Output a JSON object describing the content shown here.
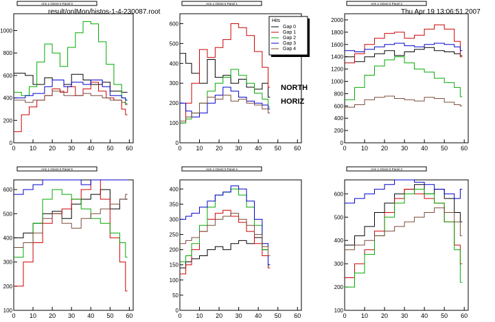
{
  "header": {
    "file_path": "result/onlMon/histos-1-4-230087.root",
    "timestamp": "Thu Apr 19 13:06:51 2007"
  },
  "annotations": {
    "line1": "NORTH",
    "line2": "HORIZ"
  },
  "legend": {
    "title": "Hits",
    "entries": [
      {
        "label": "Gap 0",
        "color": "#000000"
      },
      {
        "label": "Gap 1",
        "color": "#cc0000"
      },
      {
        "label": "Gap 2",
        "color": "#00aa00"
      },
      {
        "label": "Gap 3",
        "color": "#0000cc"
      },
      {
        "label": "Gap 4",
        "color": "#7a4a3a"
      }
    ]
  },
  "colors": {
    "gap0": "#000000",
    "gap1": "#cc0000",
    "gap2": "#00aa00",
    "gap3": "#0000cc",
    "gap4": "#7a4a3a"
  },
  "chart_data": [
    {
      "type": "line",
      "title": "Arm 1 Orient 0 Panel 0",
      "x_ticks": [
        0,
        10,
        20,
        30,
        40,
        50,
        60
      ],
      "xlim": [
        0,
        62
      ],
      "y_ticks": [
        0,
        200,
        400,
        600,
        800,
        1000
      ],
      "ylim": [
        0,
        1150
      ],
      "series": [
        {
          "name": "Gap 0",
          "x": [
            0,
            6,
            10,
            16,
            20,
            26,
            30,
            36,
            40,
            46,
            50,
            56,
            58
          ],
          "values": [
            620,
            600,
            520,
            580,
            560,
            520,
            610,
            560,
            520,
            540,
            460,
            450,
            450
          ]
        },
        {
          "name": "Gap 1",
          "x": [
            0,
            4,
            8,
            12,
            16,
            20,
            24,
            28,
            32,
            36,
            40,
            44,
            48,
            52,
            56,
            58
          ],
          "values": [
            100,
            250,
            320,
            380,
            420,
            480,
            450,
            500,
            420,
            480,
            540,
            460,
            400,
            380,
            300,
            250
          ]
        },
        {
          "name": "Gap 2",
          "x": [
            0,
            4,
            8,
            12,
            16,
            20,
            24,
            28,
            32,
            36,
            40,
            44,
            48,
            52,
            56,
            58
          ],
          "values": [
            450,
            420,
            500,
            720,
            880,
            800,
            680,
            850,
            980,
            1080,
            1060,
            900,
            700,
            520,
            400,
            350
          ]
        },
        {
          "name": "Gap 3",
          "x": [
            0,
            6,
            10,
            16,
            20,
            26,
            30,
            36,
            40,
            46,
            50,
            56,
            58
          ],
          "values": [
            400,
            420,
            440,
            500,
            560,
            500,
            540,
            520,
            560,
            500,
            420,
            400,
            380
          ]
        },
        {
          "name": "Gap 4",
          "x": [
            0,
            6,
            10,
            16,
            20,
            26,
            30,
            36,
            40,
            46,
            50,
            56,
            58
          ],
          "values": [
            380,
            360,
            380,
            420,
            460,
            420,
            420,
            440,
            420,
            400,
            380,
            360,
            340
          ]
        }
      ]
    },
    {
      "type": "line",
      "title": "Arm 1 Orient 0 Panel 1",
      "x_ticks": [
        0,
        10,
        20,
        30,
        40,
        50,
        60
      ],
      "xlim": [
        0,
        62
      ],
      "y_ticks": [
        0,
        100,
        200,
        300,
        400,
        500,
        600
      ],
      "ylim": [
        0,
        650
      ],
      "series": [
        {
          "name": "Gap 0",
          "x": [
            0,
            3,
            6,
            10,
            14,
            18,
            22,
            26,
            30,
            34,
            38,
            42,
            45
          ],
          "values": [
            450,
            400,
            350,
            300,
            420,
            330,
            340,
            300,
            320,
            280,
            270,
            300,
            230
          ]
        },
        {
          "name": "Gap 1",
          "x": [
            0,
            3,
            6,
            10,
            14,
            18,
            22,
            26,
            30,
            34,
            38,
            42,
            45
          ],
          "values": [
            100,
            200,
            300,
            470,
            430,
            480,
            520,
            600,
            580,
            540,
            460,
            380,
            280
          ]
        },
        {
          "name": "Gap 2",
          "x": [
            0,
            3,
            6,
            10,
            14,
            18,
            22,
            26,
            30,
            34,
            38,
            42,
            45
          ],
          "values": [
            100,
            120,
            150,
            200,
            260,
            300,
            330,
            370,
            340,
            300,
            250,
            220,
            180
          ]
        },
        {
          "name": "Gap 3",
          "x": [
            0,
            3,
            6,
            10,
            14,
            18,
            22,
            26,
            30,
            34,
            38,
            42,
            45
          ],
          "values": [
            200,
            160,
            130,
            150,
            200,
            240,
            280,
            260,
            230,
            210,
            200,
            190,
            170
          ]
        },
        {
          "name": "Gap 4",
          "x": [
            0,
            3,
            6,
            10,
            14,
            18,
            22,
            26,
            30,
            34,
            38,
            42,
            45
          ],
          "values": [
            110,
            130,
            150,
            200,
            230,
            220,
            240,
            210,
            220,
            200,
            190,
            170,
            150
          ]
        }
      ]
    },
    {
      "type": "line",
      "title": "Arm 1 Orient 0 Panel 2",
      "x_ticks": [
        0,
        10,
        20,
        30,
        40,
        50,
        60
      ],
      "xlim": [
        0,
        62
      ],
      "y_ticks": [
        0,
        200,
        400,
        600,
        800,
        1000,
        1200,
        1400,
        1600,
        1800,
        2000
      ],
      "ylim": [
        0,
        2100
      ],
      "series": [
        {
          "name": "Gap 0",
          "x": [
            0,
            5,
            10,
            15,
            20,
            25,
            30,
            35,
            40,
            45,
            50,
            55,
            58
          ],
          "values": [
            1400,
            1320,
            1400,
            1450,
            1500,
            1420,
            1480,
            1520,
            1550,
            1500,
            1480,
            1450,
            1420
          ]
        },
        {
          "name": "Gap 1",
          "x": [
            0,
            5,
            10,
            15,
            20,
            25,
            30,
            35,
            40,
            45,
            50,
            55,
            58
          ],
          "values": [
            1300,
            1450,
            1600,
            1700,
            1780,
            1800,
            1700,
            1750,
            1850,
            1920,
            1850,
            1650,
            1400
          ]
        },
        {
          "name": "Gap 2",
          "x": [
            0,
            5,
            10,
            15,
            20,
            25,
            30,
            35,
            40,
            45,
            50,
            55,
            58
          ],
          "values": [
            700,
            900,
            1100,
            1250,
            1350,
            1400,
            1300,
            1200,
            1150,
            1050,
            980,
            900,
            750
          ]
        },
        {
          "name": "Gap 3",
          "x": [
            0,
            5,
            10,
            15,
            20,
            25,
            30,
            35,
            40,
            45,
            50,
            55,
            58
          ],
          "values": [
            1500,
            1480,
            1520,
            1560,
            1600,
            1620,
            1580,
            1560,
            1600,
            1620,
            1600,
            1560,
            1500
          ]
        },
        {
          "name": "Gap 4",
          "x": [
            0,
            5,
            10,
            15,
            20,
            25,
            30,
            35,
            40,
            45,
            50,
            55,
            58
          ],
          "values": [
            580,
            620,
            700,
            740,
            760,
            720,
            700,
            680,
            740,
            720,
            660,
            620,
            600
          ]
        }
      ]
    },
    {
      "type": "line",
      "title": "Arm 1 Orient 0 Panel 5",
      "x_ticks": [
        0,
        10,
        20,
        30,
        40,
        50,
        60
      ],
      "xlim": [
        0,
        62
      ],
      "y_ticks": [
        100,
        200,
        300,
        400,
        500,
        600
      ],
      "ylim": [
        100,
        640
      ],
      "series": [
        {
          "name": "Gap 0",
          "x": [
            0,
            5,
            10,
            15,
            20,
            25,
            30,
            35,
            40,
            45,
            50,
            55,
            58
          ],
          "values": [
            400,
            420,
            460,
            500,
            510,
            480,
            540,
            560,
            580,
            600,
            520,
            560,
            560
          ]
        },
        {
          "name": "Gap 1",
          "x": [
            0,
            5,
            10,
            15,
            20,
            25,
            30,
            35,
            40,
            45,
            50,
            55,
            58
          ],
          "values": [
            200,
            300,
            380,
            460,
            500,
            520,
            560,
            600,
            640,
            560,
            400,
            300,
            180
          ]
        },
        {
          "name": "Gap 2",
          "x": [
            0,
            5,
            10,
            15,
            20,
            25,
            30,
            35,
            40,
            45,
            50,
            55,
            58
          ],
          "values": [
            320,
            380,
            460,
            560,
            600,
            580,
            560,
            520,
            480,
            460,
            420,
            380,
            320
          ]
        },
        {
          "name": "Gap 3",
          "x": [
            0,
            5,
            10,
            15,
            20,
            25,
            30,
            35,
            40,
            45,
            50,
            55,
            58
          ],
          "values": [
            580,
            600,
            620,
            640,
            660,
            650,
            640,
            620,
            640,
            660,
            640,
            680,
            700
          ]
        },
        {
          "name": "Gap 4",
          "x": [
            0,
            5,
            10,
            15,
            20,
            25,
            30,
            35,
            40,
            45,
            50,
            55,
            58
          ],
          "values": [
            360,
            380,
            420,
            480,
            500,
            460,
            440,
            480,
            500,
            520,
            540,
            560,
            580
          ]
        }
      ]
    },
    {
      "type": "line",
      "title": "Arm 1 Orient 0 Panel 4",
      "x_ticks": [
        0,
        10,
        20,
        30,
        40,
        50,
        60
      ],
      "xlim": [
        0,
        62
      ],
      "y_ticks": [
        0,
        50,
        100,
        150,
        200,
        250,
        300,
        350,
        400
      ],
      "ylim": [
        0,
        430
      ],
      "series": [
        {
          "name": "Gap 0",
          "x": [
            0,
            3,
            6,
            10,
            14,
            18,
            22,
            26,
            30,
            34,
            38,
            42,
            45
          ],
          "values": [
            140,
            160,
            170,
            180,
            200,
            210,
            200,
            220,
            230,
            220,
            240,
            200,
            180
          ]
        },
        {
          "name": "Gap 1",
          "x": [
            0,
            3,
            6,
            10,
            14,
            18,
            22,
            26,
            30,
            34,
            38,
            42,
            45
          ],
          "values": [
            120,
            150,
            200,
            260,
            300,
            320,
            330,
            310,
            290,
            260,
            220,
            180,
            140
          ]
        },
        {
          "name": "Gap 2",
          "x": [
            0,
            3,
            6,
            10,
            14,
            18,
            22,
            26,
            30,
            34,
            38,
            42,
            45
          ],
          "values": [
            160,
            180,
            220,
            280,
            340,
            380,
            390,
            400,
            380,
            340,
            280,
            200,
            150
          ]
        },
        {
          "name": "Gap 3",
          "x": [
            0,
            3,
            6,
            10,
            14,
            18,
            22,
            26,
            30,
            34,
            38,
            42,
            45
          ],
          "values": [
            300,
            310,
            320,
            340,
            360,
            380,
            390,
            410,
            400,
            360,
            300,
            220,
            150
          ]
        },
        {
          "name": "Gap 4",
          "x": [
            0,
            3,
            6,
            10,
            14,
            18,
            22,
            26,
            30,
            34,
            38,
            42,
            45
          ],
          "values": [
            220,
            230,
            240,
            260,
            280,
            300,
            310,
            320,
            300,
            280,
            250,
            210,
            180
          ]
        }
      ]
    },
    {
      "type": "line",
      "title": "Arm 1 Orient 0 Panel 3",
      "x_ticks": [
        0,
        10,
        20,
        30,
        40,
        50,
        60
      ],
      "xlim": [
        0,
        62
      ],
      "y_ticks": [
        100,
        200,
        300,
        400,
        500,
        600
      ],
      "ylim": [
        100,
        660
      ],
      "series": [
        {
          "name": "Gap 0",
          "x": [
            0,
            5,
            10,
            15,
            20,
            25,
            30,
            35,
            40,
            45,
            50,
            55,
            58
          ],
          "values": [
            380,
            420,
            460,
            520,
            560,
            600,
            620,
            640,
            600,
            620,
            580,
            520,
            480
          ]
        },
        {
          "name": "Gap 1",
          "x": [
            0,
            5,
            10,
            15,
            20,
            25,
            30,
            35,
            40,
            45,
            50,
            55,
            58
          ],
          "values": [
            240,
            300,
            360,
            440,
            520,
            580,
            620,
            600,
            580,
            560,
            480,
            380,
            300
          ]
        },
        {
          "name": "Gap 2",
          "x": [
            0,
            5,
            10,
            15,
            20,
            25,
            30,
            35,
            40,
            45,
            50,
            55,
            58
          ],
          "values": [
            200,
            260,
            340,
            420,
            500,
            560,
            600,
            620,
            600,
            560,
            480,
            360,
            220
          ]
        },
        {
          "name": "Gap 3",
          "x": [
            0,
            5,
            10,
            15,
            20,
            25,
            30,
            35,
            40,
            45,
            50,
            55,
            58
          ],
          "values": [
            560,
            580,
            600,
            620,
            640,
            660,
            660,
            650,
            640,
            620,
            600,
            580,
            620
          ]
        },
        {
          "name": "Gap 4",
          "x": [
            0,
            5,
            10,
            15,
            20,
            25,
            30,
            35,
            40,
            45,
            50,
            55,
            58
          ],
          "values": [
            360,
            380,
            400,
            420,
            440,
            460,
            480,
            500,
            520,
            540,
            520,
            480,
            420
          ]
        }
      ]
    }
  ]
}
